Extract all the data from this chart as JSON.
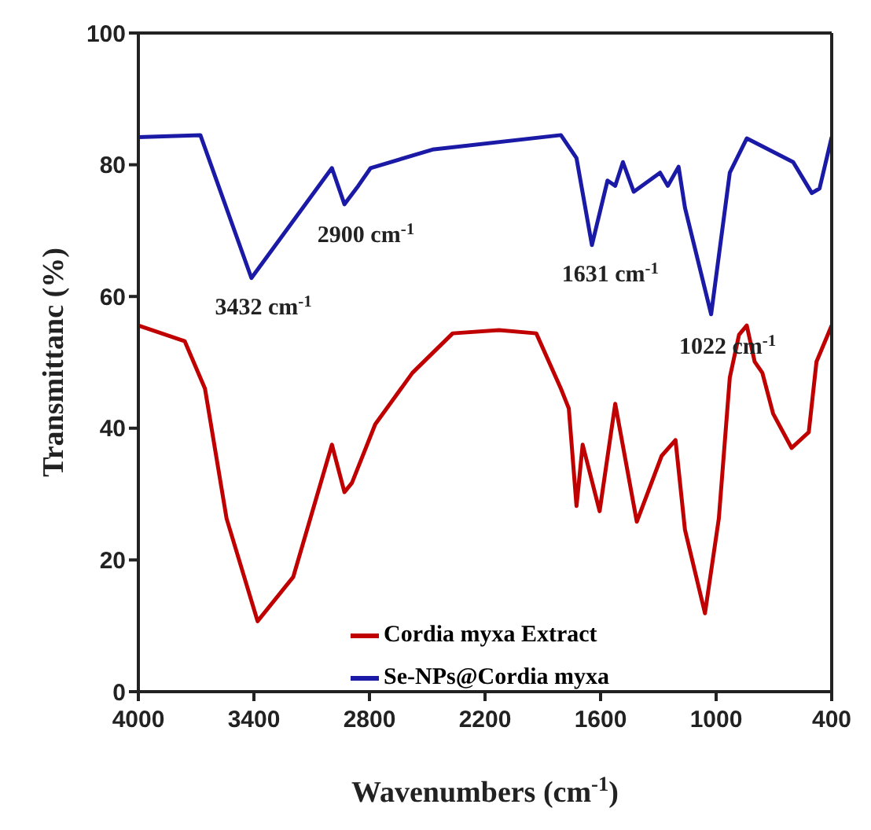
{
  "chart_data": {
    "type": "line",
    "xlabel": "Wavenumbers (cm$^{-1}$)",
    "ylabel": "Transmittanc (%)",
    "xlim": [
      4000,
      400
    ],
    "xticks": [
      4000,
      3400,
      2800,
      2200,
      1600,
      1000,
      400
    ],
    "ylim": [
      0,
      100
    ],
    "yticks": [
      0,
      20,
      40,
      60,
      80,
      100
    ],
    "legend": "bottom",
    "marker": "none",
    "line_style": "solid",
    "series": [
      {
        "name": "Cordia myxa Extract",
        "color": "#c00000",
        "x": [
          4000,
          3759,
          3654,
          3542,
          3381,
          3196,
          2995,
          2930,
          2891,
          2770,
          2577,
          2368,
          2127,
          1934,
          1806,
          1765,
          1725,
          1693,
          1605,
          1524,
          1412,
          1283,
          1211,
          1162,
          1058,
          986,
          929,
          881,
          841,
          800,
          760,
          704,
          608,
          519,
          479,
          400
        ],
        "values": [
          55.6,
          53.2,
          46,
          26.3,
          10.7,
          17.4,
          37.5,
          30.3,
          31.7,
          40.6,
          48.4,
          54.4,
          54.9,
          54.4,
          46,
          43,
          28.2,
          37.5,
          27.4,
          43.7,
          25.8,
          35.8,
          38.2,
          24.6,
          11.9,
          26.3,
          47.7,
          54.2,
          55.6,
          50.1,
          48.4,
          42.2,
          37,
          39.4,
          50.1,
          55.6
        ]
      },
      {
        "name": "Se-NPs@Cordia myxa",
        "color": "#1a1aa6",
        "x": [
          4000,
          3678,
          3413,
          2995,
          2930,
          2858,
          2794,
          2473,
          1806,
          1725,
          1645,
          1564,
          1524,
          1484,
          1428,
          1291,
          1251,
          1195,
          1162,
          1026,
          929,
          841,
          600,
          503,
          463,
          400
        ],
        "values": [
          84.2,
          84.5,
          62.8,
          79.5,
          74,
          76.8,
          79.5,
          82.3,
          84.5,
          81,
          67.8,
          77.6,
          76.8,
          80.4,
          75.9,
          78.8,
          76.8,
          79.7,
          73.5,
          57.3,
          78.8,
          84,
          80.4,
          75.7,
          76.4,
          84.2
        ]
      }
    ],
    "annotations": [
      {
        "text": "3432 cm$^{-1}$",
        "x": 3432,
        "y": 63
      },
      {
        "text": "2900 cm$^{-1}$",
        "x": 2900,
        "y": 74
      },
      {
        "text": "1631 cm$^{-1}$",
        "x": 1631,
        "y": 68
      },
      {
        "text": "1022 cm$^{-1}$",
        "x": 1022,
        "y": 57
      }
    ]
  }
}
